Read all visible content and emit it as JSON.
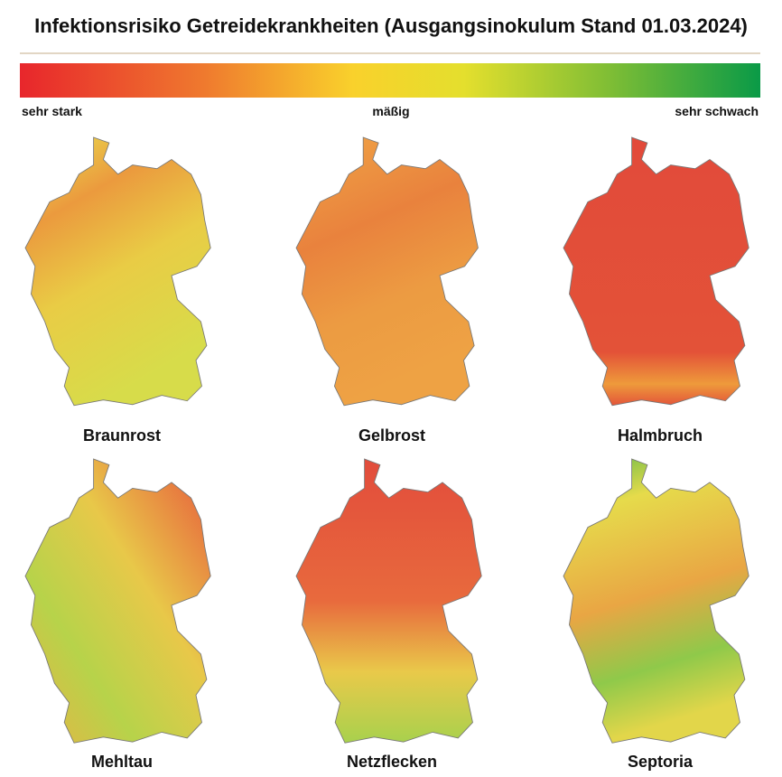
{
  "title": "Infektionsrisiko Getreidekrankheiten (Ausgangsinokulum Stand 01.03.2024)",
  "legend": {
    "labels": [
      "sehr stark",
      "mäßig",
      "sehr schwach"
    ]
  },
  "maps": [
    {
      "name": "Braunrost"
    },
    {
      "name": "Gelbrost"
    },
    {
      "name": "Halmbruch"
    },
    {
      "name": "Mehltau"
    },
    {
      "name": "Netzflecken"
    },
    {
      "name": "Septoria"
    }
  ]
}
